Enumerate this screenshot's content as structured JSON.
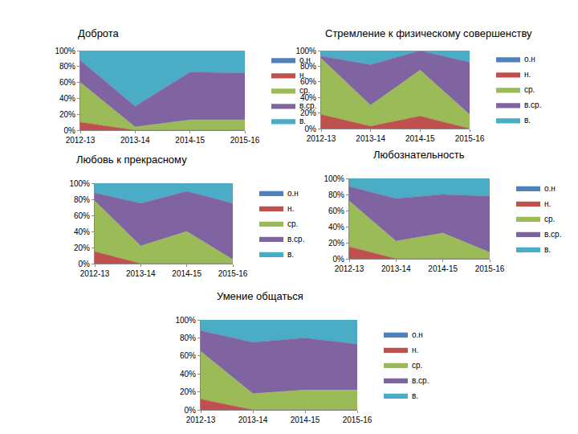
{
  "chart_data": [
    {
      "type": "area",
      "title": "Доброта",
      "categories": [
        "2012-13",
        "2013-14",
        "2014-15",
        "2015-16"
      ],
      "series": [
        {
          "name": "о.н",
          "color": "#4f81bd",
          "values": [
            0,
            0,
            0,
            0
          ]
        },
        {
          "name": "н.",
          "color": "#c0504d",
          "values": [
            10,
            0,
            0,
            0
          ]
        },
        {
          "name": "ср.",
          "color": "#9bbb59",
          "values": [
            50,
            4,
            13,
            13
          ]
        },
        {
          "name": "в.ср.",
          "color": "#8064a2",
          "values": [
            28,
            26,
            60,
            59
          ]
        },
        {
          "name": "в.",
          "color": "#4bacc6",
          "values": [
            12,
            70,
            27,
            28
          ]
        }
      ],
      "ylim": [
        0,
        100
      ],
      "yticks": [
        {
          "value": 0,
          "label": "0%"
        },
        {
          "value": 20,
          "label": "20%"
        },
        {
          "value": 40,
          "label": "40%"
        },
        {
          "value": 60,
          "label": "60%"
        },
        {
          "value": 80,
          "label": "80%"
        },
        {
          "value": 100,
          "label": "100%"
        }
      ],
      "stacked": true,
      "grid": false,
      "legend": "right"
    },
    {
      "type": "area",
      "title": "Стремление к физическому совершенству",
      "categories": [
        "2012-13",
        "2013-14",
        "2014-15",
        "2015-16"
      ],
      "series": [
        {
          "name": "о.н",
          "color": "#4f81bd",
          "values": [
            0,
            0,
            0,
            0
          ]
        },
        {
          "name": "н.",
          "color": "#c0504d",
          "values": [
            18,
            3,
            16,
            0
          ]
        },
        {
          "name": "ср.",
          "color": "#9bbb59",
          "values": [
            72,
            27,
            59,
            18
          ]
        },
        {
          "name": "в.ср.",
          "color": "#8064a2",
          "values": [
            3,
            52,
            25,
            67
          ]
        },
        {
          "name": "в.",
          "color": "#4bacc6",
          "values": [
            7,
            18,
            0,
            15
          ]
        }
      ],
      "ylim": [
        0,
        100
      ],
      "yticks": [
        {
          "value": 0,
          "label": "0%"
        },
        {
          "value": 20,
          "label": "20%"
        },
        {
          "value": 40,
          "label": "40%"
        },
        {
          "value": 60,
          "label": "60%"
        },
        {
          "value": 80,
          "label": "80%"
        },
        {
          "value": 100,
          "label": "100%"
        }
      ],
      "stacked": true,
      "grid": false,
      "legend": "right"
    },
    {
      "type": "area",
      "title": "Любовь к прекрасному",
      "categories": [
        "2012-13",
        "2013-14",
        "2014-15",
        "2015-16"
      ],
      "series": [
        {
          "name": "о.н",
          "color": "#4f81bd",
          "values": [
            0,
            0,
            0,
            0
          ]
        },
        {
          "name": "н.",
          "color": "#c0504d",
          "values": [
            15,
            0,
            0,
            0
          ]
        },
        {
          "name": "ср.",
          "color": "#9bbb59",
          "values": [
            63,
            22,
            40,
            5
          ]
        },
        {
          "name": "в.ср.",
          "color": "#8064a2",
          "values": [
            10,
            53,
            50,
            70
          ]
        },
        {
          "name": "в.",
          "color": "#4bacc6",
          "values": [
            12,
            25,
            10,
            25
          ]
        }
      ],
      "ylim": [
        0,
        100
      ],
      "yticks": [
        {
          "value": 0,
          "label": "0%"
        },
        {
          "value": 20,
          "label": "20%"
        },
        {
          "value": 40,
          "label": "40%"
        },
        {
          "value": 60,
          "label": "60%"
        },
        {
          "value": 80,
          "label": "80%"
        },
        {
          "value": 100,
          "label": "100%"
        }
      ],
      "stacked": true,
      "grid": false,
      "legend": "right"
    },
    {
      "type": "area",
      "title": "Любознательность",
      "categories": [
        "2012-13",
        "2013-14",
        "2014-15",
        "2015-16"
      ],
      "series": [
        {
          "name": "о.н",
          "color": "#4f81bd",
          "values": [
            0,
            0,
            0,
            0
          ]
        },
        {
          "name": "н.",
          "color": "#c0504d",
          "values": [
            15,
            0,
            0,
            0
          ]
        },
        {
          "name": "ср.",
          "color": "#9bbb59",
          "values": [
            57,
            22,
            32,
            8
          ]
        },
        {
          "name": "в.ср.",
          "color": "#8064a2",
          "values": [
            18,
            53,
            48,
            70
          ]
        },
        {
          "name": "в.",
          "color": "#4bacc6",
          "values": [
            10,
            25,
            20,
            22
          ]
        }
      ],
      "ylim": [
        0,
        100
      ],
      "yticks": [
        {
          "value": 0,
          "label": "0%"
        },
        {
          "value": 20,
          "label": "20%"
        },
        {
          "value": 40,
          "label": "40%"
        },
        {
          "value": 60,
          "label": "60%"
        },
        {
          "value": 80,
          "label": "80%"
        },
        {
          "value": 100,
          "label": "100%"
        }
      ],
      "stacked": true,
      "grid": false,
      "legend": "right"
    },
    {
      "type": "area",
      "title": "Умение общаться",
      "categories": [
        "2012-13",
        "2013-14",
        "2014-15",
        "2015-16"
      ],
      "series": [
        {
          "name": "о.н",
          "color": "#4f81bd",
          "values": [
            0,
            0,
            0,
            0
          ]
        },
        {
          "name": "н.",
          "color": "#c0504d",
          "values": [
            12,
            0,
            0,
            0
          ]
        },
        {
          "name": "ср.",
          "color": "#9bbb59",
          "values": [
            53,
            18,
            22,
            22
          ]
        },
        {
          "name": "в.ср.",
          "color": "#8064a2",
          "values": [
            23,
            57,
            58,
            51
          ]
        },
        {
          "name": "в.",
          "color": "#4bacc6",
          "values": [
            12,
            25,
            20,
            27
          ]
        }
      ],
      "ylim": [
        0,
        100
      ],
      "yticks": [
        {
          "value": 0,
          "label": "0%"
        },
        {
          "value": 20,
          "label": "20%"
        },
        {
          "value": 40,
          "label": "40%"
        },
        {
          "value": 60,
          "label": "60%"
        },
        {
          "value": 80,
          "label": "80%"
        },
        {
          "value": 100,
          "label": "100%"
        }
      ],
      "stacked": true,
      "grid": false,
      "legend": "right"
    }
  ]
}
